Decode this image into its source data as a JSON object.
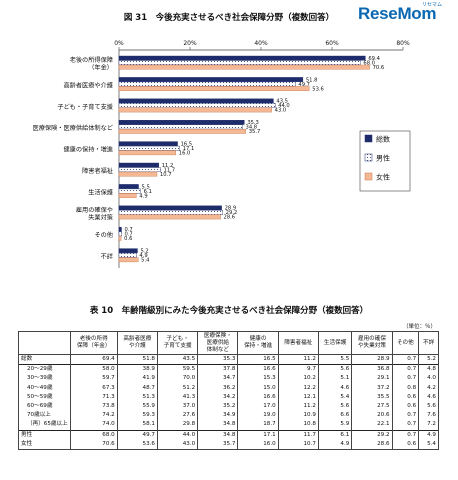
{
  "brand": {
    "name": "ReseMom",
    "kana": "リセマム"
  },
  "chart_data": {
    "type": "bar",
    "orientation": "horizontal",
    "title": "図 31　今後充実させるべき社会保障分野（複数回答）",
    "categories": [
      "老後の所得保障\n（年金）",
      "高齢者医療や介護",
      "子ども・子育て支援",
      "医療保険・医療供給体制など",
      "健康の保持・増進",
      "障害者福祉",
      "生活保護",
      "雇用の確保や\n失業対策",
      "その他",
      "不詳"
    ],
    "series": [
      {
        "name": "総数",
        "color": "#1f2c6b",
        "values": [
          69.4,
          51.8,
          43.5,
          35.3,
          16.5,
          11.2,
          5.5,
          28.9,
          0.7,
          5.2
        ]
      },
      {
        "name": "男性",
        "color": "#ffffff",
        "values": [
          68.0,
          49.7,
          44.0,
          34.8,
          17.1,
          11.7,
          6.1,
          29.2,
          0.7,
          4.9
        ]
      },
      {
        "name": "女性",
        "color": "#f5b895",
        "values": [
          70.6,
          53.6,
          43.0,
          35.7,
          16.0,
          10.7,
          4.9,
          28.6,
          0.6,
          5.4
        ]
      }
    ],
    "xlim": [
      0,
      80
    ],
    "xticks": [
      "0%",
      "20%",
      "40%",
      "60%",
      "80%"
    ],
    "grid": false,
    "legend": "right"
  },
  "table": {
    "title": "表 10　年齢階級別にみた今後充実させるべき社会保障分野（複数回答）",
    "unit": "（単位：％）",
    "headers": [
      "",
      "老後の所得\n保障（年金）",
      "高齢者医療\nや介護",
      "子ども・\n子育て支援",
      "医療保険・\n医療供給\n体制など",
      "健康の\n保持・増進",
      "障害者福祉",
      "生活保護",
      "雇用の確保\nや失業対策",
      "その他",
      "不詳"
    ],
    "rows": [
      [
        "総数",
        "69.4",
        "51.8",
        "43.5",
        "35.3",
        "16.5",
        "11.2",
        "5.5",
        "28.9",
        "0.7",
        "5.2"
      ],
      [
        "20～29歳",
        "58.0",
        "38.9",
        "59.5",
        "37.8",
        "16.6",
        "9.7",
        "5.6",
        "36.8",
        "0.7",
        "4.8"
      ],
      [
        "30～39歳",
        "59.7",
        "41.9",
        "70.0",
        "34.7",
        "15.3",
        "10.2",
        "5.1",
        "29.1",
        "0.7",
        "4.0"
      ],
      [
        "40～49歳",
        "67.3",
        "48.7",
        "51.2",
        "36.2",
        "15.0",
        "12.2",
        "4.6",
        "37.2",
        "0.8",
        "4.2"
      ],
      [
        "50～59歳",
        "71.3",
        "51.3",
        "41.3",
        "34.2",
        "16.6",
        "12.1",
        "5.4",
        "35.5",
        "0.6",
        "4.6"
      ],
      [
        "60～69歳",
        "73.8",
        "55.9",
        "37.0",
        "35.2",
        "17.0",
        "11.2",
        "5.6",
        "27.5",
        "0.6",
        "5.6"
      ],
      [
        "70歳以上",
        "74.2",
        "59.3",
        "27.6",
        "34.9",
        "19.0",
        "10.9",
        "6.6",
        "20.6",
        "0.7",
        "7.6"
      ],
      [
        "（再）65歳以上",
        "74.0",
        "58.1",
        "29.8",
        "34.8",
        "18.7",
        "10.8",
        "5.9",
        "22.1",
        "0.7",
        "7.2"
      ],
      [
        "男性",
        "68.0",
        "49.7",
        "44.0",
        "34.8",
        "17.1",
        "11.7",
        "6.1",
        "29.2",
        "0.7",
        "4.9"
      ],
      [
        "女性",
        "70.6",
        "53.6",
        "43.0",
        "35.7",
        "16.0",
        "10.7",
        "4.9",
        "28.6",
        "0.6",
        "5.4"
      ]
    ]
  }
}
